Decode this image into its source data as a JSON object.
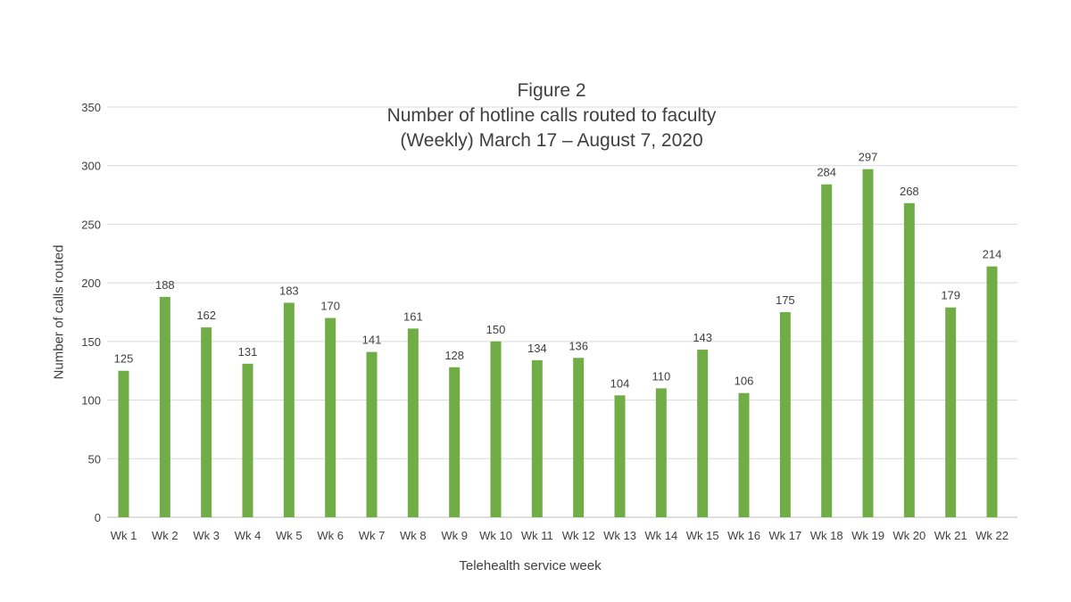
{
  "chart_data": {
    "type": "bar",
    "title_lines": [
      "Figure 2",
      "Number of hotline calls routed to faculty",
      "(Weekly) March 17 – August 7, 2020"
    ],
    "xlabel": "Telehealth service week",
    "ylabel": "Number of calls routed",
    "ylim": [
      0,
      350
    ],
    "yticks": [
      0,
      50,
      100,
      150,
      200,
      250,
      300,
      350
    ],
    "grid": true,
    "legend": "none",
    "bar_color": "#70ad47",
    "categories": [
      "Wk 1",
      "Wk 2",
      "Wk 3",
      "Wk 4",
      "Wk 5",
      "Wk 6",
      "Wk 7",
      "Wk 8",
      "Wk 9",
      "Wk 10",
      "Wk 11",
      "Wk 12",
      "Wk 13",
      "Wk 14",
      "Wk 15",
      "Wk 16",
      "Wk 17",
      "Wk 18",
      "Wk 19",
      "Wk 20",
      "Wk 21",
      "Wk 22"
    ],
    "values": [
      125,
      188,
      162,
      131,
      183,
      170,
      141,
      161,
      128,
      150,
      134,
      136,
      104,
      110,
      143,
      106,
      175,
      284,
      297,
      268,
      179,
      214
    ]
  }
}
